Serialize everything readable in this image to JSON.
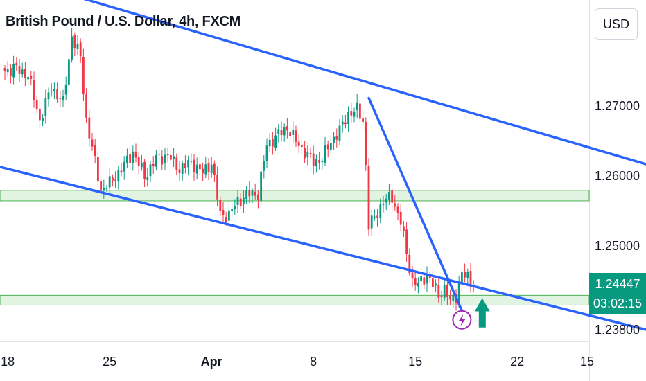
{
  "header": {
    "title": "British Pound / U.S. Dollar, 4h, FXCM"
  },
  "price_axis": {
    "currency": "USD"
  },
  "last_price": {
    "value": "1.24447",
    "countdown": "03:02:15"
  },
  "colors": {
    "up": "#089981",
    "down": "#f23645",
    "trendline": "#2962ff",
    "zone_fill": "#d4f0d4",
    "zone_border": "#4caf50",
    "arrow": "#089981",
    "flash": "#9c27b0"
  },
  "icons": {
    "arrow": "up-arrow-icon",
    "flash": "lightning-icon"
  },
  "chart_data": {
    "type": "candlestick",
    "symbol": "GBPUSD",
    "interval": "4h",
    "ylim": [
      1.2365,
      1.2852
    ],
    "y_ticks": [
      {
        "label": "1.27000",
        "value": 1.27
      },
      {
        "label": "1.26000",
        "value": 1.26
      },
      {
        "label": "1.25000",
        "value": 1.25
      },
      {
        "label": "1.23800",
        "value": 1.238
      }
    ],
    "x_ticks": [
      {
        "label": "18",
        "index": 1,
        "bold": false
      },
      {
        "label": "25",
        "index": 36,
        "bold": false
      },
      {
        "label": "Apr",
        "index": 71,
        "bold": true
      },
      {
        "label": "8",
        "index": 106,
        "bold": false
      },
      {
        "label": "15",
        "index": 141,
        "bold": false
      },
      {
        "label": "22",
        "index": 176,
        "bold": false
      },
      {
        "label": "15",
        "index": 200,
        "bold": false
      }
    ],
    "candle_count": 162,
    "last_price": 1.24447,
    "key_closes": [
      [
        0,
        1.275
      ],
      [
        3,
        1.2755
      ],
      [
        8,
        1.2745
      ],
      [
        12,
        1.268
      ],
      [
        16,
        1.2728
      ],
      [
        20,
        1.2705
      ],
      [
        23,
        1.28
      ],
      [
        26,
        1.277
      ],
      [
        28,
        1.268
      ],
      [
        30,
        1.264
      ],
      [
        33,
        1.258
      ],
      [
        36,
        1.259
      ],
      [
        40,
        1.261
      ],
      [
        44,
        1.2635
      ],
      [
        48,
        1.26
      ],
      [
        52,
        1.2625
      ],
      [
        56,
        1.263
      ],
      [
        60,
        1.261
      ],
      [
        64,
        1.262
      ],
      [
        68,
        1.2605
      ],
      [
        71,
        1.262
      ],
      [
        74,
        1.2545
      ],
      [
        77,
        1.2545
      ],
      [
        80,
        1.2565
      ],
      [
        84,
        1.2575
      ],
      [
        87,
        1.2575
      ],
      [
        90,
        1.2645
      ],
      [
        94,
        1.266
      ],
      [
        97,
        1.267
      ],
      [
        100,
        1.265
      ],
      [
        103,
        1.2635
      ],
      [
        106,
        1.262
      ],
      [
        109,
        1.2625
      ],
      [
        112,
        1.265
      ],
      [
        115,
        1.2665
      ],
      [
        118,
        1.269
      ],
      [
        121,
        1.2695
      ],
      [
        123,
        1.268
      ],
      [
        124,
        1.2615
      ],
      [
        125,
        1.253
      ],
      [
        127,
        1.254
      ],
      [
        130,
        1.2565
      ],
      [
        133,
        1.257
      ],
      [
        136,
        1.2535
      ],
      [
        138,
        1.249
      ],
      [
        140,
        1.245
      ],
      [
        142,
        1.2445
      ],
      [
        145,
        1.246
      ],
      [
        147,
        1.2445
      ],
      [
        149,
        1.243
      ],
      [
        151,
        1.244
      ],
      [
        153,
        1.242
      ],
      [
        155,
        1.243
      ],
      [
        157,
        1.246
      ],
      [
        159,
        1.2455
      ],
      [
        161,
        1.24447
      ]
    ],
    "support_resistance_zones": [
      {
        "from": 1.2565,
        "to": 1.258
      },
      {
        "from": 1.2416,
        "to": 1.243
      }
    ],
    "trendlines": [
      {
        "name": "channel-top",
        "from": [
          -5,
          1.2893
        ],
        "to": [
          223,
          1.2614
        ]
      },
      {
        "name": "channel-bottom",
        "from": [
          -5,
          1.2617
        ],
        "to": [
          223,
          1.2378
        ]
      },
      {
        "name": "steep-line",
        "from": [
          125,
          1.2712
        ],
        "to": [
          157,
          1.2408
        ]
      }
    ],
    "annotations": [
      {
        "type": "arrow-up",
        "at_index": 164,
        "price_range": [
          1.2384,
          1.2426
        ]
      },
      {
        "type": "lightning-circle",
        "at_index": 157,
        "price": 1.2395
      }
    ]
  }
}
